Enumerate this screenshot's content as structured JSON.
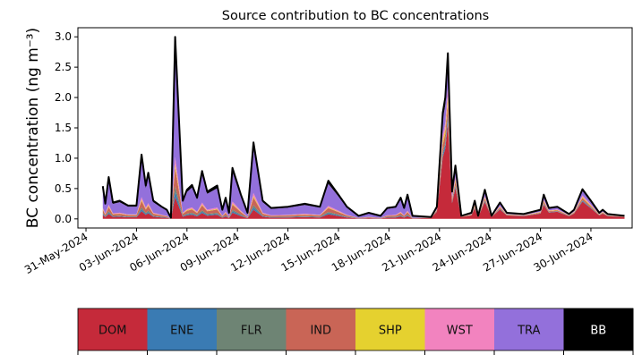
{
  "chart_data": {
    "type": "area",
    "stacked": true,
    "title": "Source contribution to BC concentrations",
    "xlabel": "",
    "ylabel": "BC concentration (ng m⁻³)",
    "x_unit": "days after 31-May-2024",
    "xlim": [
      -0.48,
      32.45
    ],
    "ylim": [
      -0.15,
      3.15
    ],
    "xticks": [
      0,
      3,
      6,
      9,
      12,
      15,
      18,
      21,
      24,
      27,
      30
    ],
    "xtick_labels": [
      "31-May-2024",
      "03-Jun-2024",
      "06-Jun-2024",
      "09-Jun-2024",
      "12-Jun-2024",
      "15-Jun-2024",
      "18-Jun-2024",
      "21-Jun-2024",
      "24-Jun-2024",
      "27-Jun-2024",
      "30-Jun-2024"
    ],
    "yticks": [
      0.0,
      0.5,
      1.0,
      1.5,
      2.0,
      2.5,
      3.0
    ],
    "ytick_labels": [
      "0.0",
      "0.5",
      "1.0",
      "1.5",
      "2.0",
      "2.5",
      "3.0"
    ],
    "grid": false,
    "legend_placement": "bottom colorbar",
    "sources": [
      {
        "name": "DOM",
        "color": "#c52a3a"
      },
      {
        "name": "ENE",
        "color": "#3a7bb3"
      },
      {
        "name": "FLR",
        "color": "#6e8474"
      },
      {
        "name": "IND",
        "color": "#c96556"
      },
      {
        "name": "SHP",
        "color": "#e5d12f"
      },
      {
        "name": "WST",
        "color": "#f283bf"
      },
      {
        "name": "TRA",
        "color": "#9370db"
      },
      {
        "name": "BB",
        "color": "#000000"
      }
    ],
    "x": [
      1.0,
      1.15,
      1.35,
      1.6,
      2.0,
      2.5,
      3.0,
      3.3,
      3.55,
      3.7,
      4.0,
      4.5,
      4.8,
      5.05,
      5.3,
      5.75,
      6.0,
      6.3,
      6.6,
      6.9,
      7.2,
      7.8,
      8.1,
      8.3,
      8.5,
      8.7,
      9.2,
      9.6,
      9.95,
      10.5,
      11.0,
      12.0,
      13.0,
      13.9,
      14.4,
      15.0,
      15.5,
      16.2,
      16.8,
      17.5,
      17.9,
      18.4,
      18.7,
      18.9,
      19.1,
      19.4,
      20.5,
      20.85,
      21.2,
      21.35,
      21.5,
      21.75,
      21.95,
      22.3,
      22.9,
      23.1,
      23.3,
      23.7,
      24.1,
      24.6,
      25.0,
      26.0,
      27.0,
      27.2,
      27.5,
      28.0,
      28.7,
      29.0,
      29.5,
      30.0,
      30.5,
      30.7,
      31.0,
      32.0
    ],
    "total": [
      0.54,
      0.25,
      0.69,
      0.27,
      0.3,
      0.22,
      0.22,
      1.06,
      0.55,
      0.76,
      0.3,
      0.2,
      0.15,
      0.02,
      3.0,
      0.3,
      0.48,
      0.56,
      0.35,
      0.79,
      0.45,
      0.55,
      0.15,
      0.35,
      0.1,
      0.84,
      0.4,
      0.1,
      1.26,
      0.3,
      0.18,
      0.2,
      0.25,
      0.2,
      0.63,
      0.4,
      0.2,
      0.05,
      0.1,
      0.05,
      0.18,
      0.2,
      0.35,
      0.18,
      0.4,
      0.05,
      0.03,
      0.2,
      1.75,
      2.0,
      2.73,
      0.45,
      0.88,
      0.05,
      0.1,
      0.3,
      0.05,
      0.48,
      0.05,
      0.27,
      0.1,
      0.08,
      0.15,
      0.4,
      0.18,
      0.2,
      0.08,
      0.15,
      0.49,
      0.3,
      0.1,
      0.15,
      0.08,
      0.05
    ],
    "composition_periods": [
      {
        "from": 1.0,
        "to": 20.5,
        "shares": {
          "DOM": 0.12,
          "ENE": 0.03,
          "FLR": 0.03,
          "IND": 0.1,
          "SHP": 0.02,
          "WST": 0.04,
          "TRA": 0.58,
          "BB": 0.08
        }
      },
      {
        "from": 20.5,
        "to": 32.0,
        "shares": {
          "DOM": 0.58,
          "ENE": 0.03,
          "FLR": 0.02,
          "IND": 0.07,
          "SHP": 0.04,
          "WST": 0.05,
          "TRA": 0.15,
          "BB": 0.06
        }
      }
    ]
  }
}
